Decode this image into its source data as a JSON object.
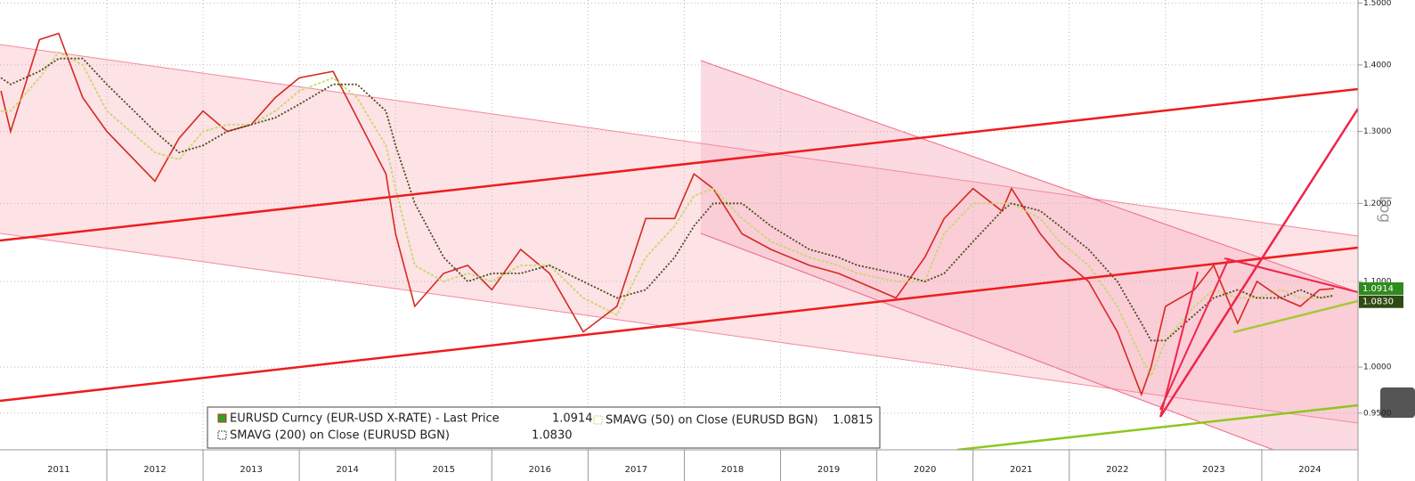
{
  "chart_data": {
    "type": "line",
    "log_scale_y": true,
    "axis_label": "Log",
    "x": [
      2010.9,
      2011.0,
      2011.3,
      2011.5,
      2011.75,
      2012.0,
      2012.5,
      2012.75,
      2013.0,
      2013.25,
      2013.5,
      2013.75,
      2014.0,
      2014.35,
      2014.6,
      2014.9,
      2015.0,
      2015.2,
      2015.5,
      2015.75,
      2016.0,
      2016.3,
      2016.6,
      2016.95,
      2017.3,
      2017.6,
      2017.9,
      2018.1,
      2018.3,
      2018.6,
      2018.9,
      2019.3,
      2019.6,
      2019.8,
      2020.2,
      2020.5,
      2020.7,
      2021.0,
      2021.3,
      2021.4,
      2021.7,
      2021.9,
      2022.2,
      2022.5,
      2022.75,
      2022.85,
      2023.0,
      2023.3,
      2023.5,
      2023.75,
      2023.95,
      2024.2,
      2024.4,
      2024.6,
      2024.75
    ],
    "series": [
      {
        "name": "EURUSD Curncy (EUR-USD X-RATE) - Last Price",
        "color": "#d42a1f",
        "dash": "none",
        "last_label": "1.0914",
        "values": [
          1.36,
          1.3,
          1.44,
          1.45,
          1.35,
          1.3,
          1.23,
          1.29,
          1.33,
          1.3,
          1.31,
          1.35,
          1.38,
          1.39,
          1.32,
          1.24,
          1.16,
          1.07,
          1.11,
          1.12,
          1.09,
          1.14,
          1.11,
          1.04,
          1.07,
          1.18,
          1.18,
          1.24,
          1.22,
          1.16,
          1.14,
          1.12,
          1.11,
          1.1,
          1.08,
          1.13,
          1.18,
          1.22,
          1.19,
          1.22,
          1.16,
          1.13,
          1.1,
          1.04,
          0.97,
          1.0,
          1.07,
          1.09,
          1.12,
          1.05,
          1.1,
          1.08,
          1.07,
          1.09,
          1.0914
        ]
      },
      {
        "name": "SMAVG (50)  on Close (EURUSD BGN)",
        "color": "#c6d96a",
        "dash": "3 2",
        "last_label": "1.0815",
        "values": [
          1.33,
          1.33,
          1.38,
          1.42,
          1.4,
          1.33,
          1.27,
          1.26,
          1.3,
          1.31,
          1.31,
          1.33,
          1.36,
          1.38,
          1.35,
          1.28,
          1.22,
          1.12,
          1.1,
          1.11,
          1.1,
          1.12,
          1.12,
          1.08,
          1.06,
          1.13,
          1.17,
          1.21,
          1.22,
          1.18,
          1.15,
          1.13,
          1.12,
          1.11,
          1.1,
          1.1,
          1.16,
          1.2,
          1.2,
          1.2,
          1.18,
          1.15,
          1.12,
          1.07,
          1.01,
          0.99,
          1.03,
          1.07,
          1.09,
          1.08,
          1.08,
          1.09,
          1.08,
          1.08,
          1.0815
        ]
      },
      {
        "name": "SMAVG (200)  on Close (EURUSD BGN)",
        "color": "#4a4a1c",
        "dash": "2 2",
        "last_label": "1.0830",
        "values": [
          1.38,
          1.37,
          1.39,
          1.41,
          1.41,
          1.37,
          1.3,
          1.27,
          1.28,
          1.3,
          1.31,
          1.32,
          1.34,
          1.37,
          1.37,
          1.33,
          1.28,
          1.2,
          1.13,
          1.1,
          1.11,
          1.11,
          1.12,
          1.1,
          1.08,
          1.09,
          1.13,
          1.17,
          1.2,
          1.2,
          1.17,
          1.14,
          1.13,
          1.12,
          1.11,
          1.1,
          1.11,
          1.15,
          1.19,
          1.2,
          1.19,
          1.17,
          1.14,
          1.1,
          1.05,
          1.03,
          1.03,
          1.06,
          1.08,
          1.09,
          1.08,
          1.08,
          1.09,
          1.08,
          1.083
        ]
      }
    ],
    "xlim": [
      2010.89,
      2025.0
    ],
    "xticks": [
      {
        "value": 2011.5,
        "label": "2011"
      },
      {
        "value": 2012.5,
        "label": "2012"
      },
      {
        "value": 2013.5,
        "label": "2013"
      },
      {
        "value": 2014.5,
        "label": "2014"
      },
      {
        "value": 2015.5,
        "label": "2015"
      },
      {
        "value": 2016.5,
        "label": "2016"
      },
      {
        "value": 2017.5,
        "label": "2017"
      },
      {
        "value": 2018.5,
        "label": "2018"
      },
      {
        "value": 2019.5,
        "label": "2019"
      },
      {
        "value": 2020.5,
        "label": "2020"
      },
      {
        "value": 2021.5,
        "label": "2021"
      },
      {
        "value": 2022.5,
        "label": "2022"
      },
      {
        "value": 2023.5,
        "label": "2023"
      },
      {
        "value": 2024.5,
        "label": "2024"
      }
    ],
    "ylim": [
      0.912,
      1.505
    ],
    "yticks": [
      {
        "value": 0.95,
        "label": "0.9500"
      },
      {
        "value": 1.0,
        "label": "1.0000"
      },
      {
        "value": 1.1,
        "label": "1.1000"
      },
      {
        "value": 1.2,
        "label": "1.2000"
      },
      {
        "value": 1.3,
        "label": "1.3000"
      },
      {
        "value": 1.4,
        "label": "1.4000"
      },
      {
        "value": 1.5,
        "label": "1.5000"
      }
    ],
    "grid": true
  }
}
